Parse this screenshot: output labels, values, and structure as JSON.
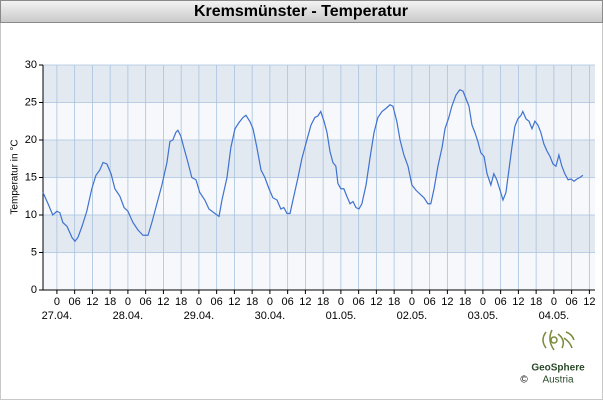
{
  "chart_data": {
    "type": "line",
    "title": "Kremsmünster - Temperatur",
    "y_label": "Temperatur in °C",
    "x": [
      -4.7,
      -3.0,
      -1.4,
      0,
      1.0,
      2.0,
      3.4,
      5.1,
      6.1,
      7.1,
      8.5,
      10.1,
      11.8,
      13.2,
      14.5,
      15.6,
      16.9,
      18.3,
      19.6,
      21.3,
      22.7,
      24.0,
      25.7,
      27.4,
      29.1,
      30.8,
      32.1,
      33.8,
      35.5,
      37.2,
      38.2,
      39.2,
      40.2,
      40.9,
      41.9,
      42.9,
      44.3,
      45.6,
      47.0,
      48.3,
      50.0,
      51.4,
      53.1,
      54.8,
      55.8,
      57.5,
      58.8,
      60.2,
      61.5,
      62.9,
      63.9,
      65.2,
      66.3,
      67.6,
      69.0,
      70.3,
      71.7,
      73.0,
      74.4,
      75.7,
      76.7,
      77.8,
      78.8,
      79.8,
      81.5,
      82.8,
      84.5,
      85.9,
      87.2,
      88.2,
      89.2,
      90.3,
      91.3,
      92.3,
      93.3,
      94.3,
      95.0,
      96.0,
      97.0,
      98.0,
      99.1,
      100.1,
      101.1,
      102.1,
      103.1,
      104.5,
      105.8,
      107.2,
      108.5,
      109.9,
      111.2,
      112.6,
      113.6,
      114.9,
      116.0,
      117.3,
      118.7,
      120.0,
      121.4,
      122.7,
      124.1,
      125.4,
      126.4,
      127.5,
      128.8,
      130.2,
      131.2,
      132.5,
      133.5,
      134.9,
      136.2,
      137.3,
      138.3,
      139.3,
      140.3,
      141.3,
      142.3,
      143.3,
      144.4,
      145.4,
      146.7,
      147.7,
      148.7,
      149.8,
      150.8,
      151.8,
      152.8,
      153.8,
      154.8,
      155.8,
      156.9,
      157.5,
      158.6,
      159.6,
      160.6,
      161.6,
      162.6,
      163.6,
      164.6,
      165.7,
      166.7,
      167.7,
      168.7,
      169.7,
      170.7,
      171.7,
      172.8,
      173.8,
      174.8,
      175.8,
      176.8,
      177.8
    ],
    "values": [
      13,
      11.5,
      10,
      10.5,
      10.3,
      9,
      8.5,
      7,
      6.5,
      7,
      8.5,
      10.5,
      13.5,
      15.3,
      16,
      17,
      16.8,
      15.5,
      13.5,
      12.5,
      11,
      10.5,
      9,
      8,
      7.3,
      7.3,
      9,
      11.5,
      14,
      17,
      19.8,
      20,
      21,
      21.3,
      20.5,
      19,
      17,
      15,
      14.7,
      13,
      12,
      10.8,
      10.3,
      9.8,
      12,
      15,
      19,
      21.5,
      22.3,
      23,
      23.3,
      22.5,
      21.5,
      19,
      16,
      15,
      13.5,
      12.3,
      12,
      10.8,
      11,
      10.2,
      10.2,
      12,
      15,
      17.5,
      20,
      22,
      23,
      23.2,
      23.8,
      22.5,
      21,
      18.5,
      17,
      16.5,
      14.2,
      13.5,
      13.5,
      12.5,
      11.5,
      11.8,
      11,
      10.8,
      11.5,
      14,
      17.5,
      21,
      23,
      23.8,
      24.2,
      24.7,
      24.5,
      22.5,
      20,
      18,
      16.5,
      14,
      13.3,
      12.8,
      12.3,
      11.5,
      11.5,
      13.5,
      16.5,
      19,
      21.5,
      23,
      24.5,
      26,
      26.7,
      26.5,
      25.5,
      24.5,
      22,
      21,
      19.8,
      18.3,
      17.8,
      15.5,
      14,
      15.5,
      14.7,
      13.3,
      12,
      13,
      16,
      19,
      21.8,
      22.8,
      23.3,
      23.8,
      22.8,
      22.5,
      21.5,
      22.5,
      22,
      21,
      19.5,
      18.5,
      17.8,
      16.8,
      16.5,
      18,
      16.5,
      15.5,
      14.7,
      14.8,
      14.5,
      14.8,
      15,
      15.3
    ],
    "color": "#3f72d0",
    "xlim": [
      -4.7,
      181.9
    ],
    "xticks": [
      {
        "value": 0,
        "label": "0"
      },
      {
        "value": 6,
        "label": "06"
      },
      {
        "value": 12,
        "label": "12"
      },
      {
        "value": 18,
        "label": "18"
      },
      {
        "value": 24,
        "label": "0"
      },
      {
        "value": 30,
        "label": "06"
      },
      {
        "value": 36,
        "label": "12"
      },
      {
        "value": 42,
        "label": "18"
      },
      {
        "value": 48,
        "label": "0"
      },
      {
        "value": 54,
        "label": "06"
      },
      {
        "value": 60,
        "label": "12"
      },
      {
        "value": 66,
        "label": "18"
      },
      {
        "value": 72,
        "label": "0"
      },
      {
        "value": 78,
        "label": "06"
      },
      {
        "value": 84,
        "label": "12"
      },
      {
        "value": 90,
        "label": "18"
      },
      {
        "value": 96,
        "label": "0"
      },
      {
        "value": 102,
        "label": "06"
      },
      {
        "value": 108,
        "label": "12"
      },
      {
        "value": 114,
        "label": "18"
      },
      {
        "value": 120,
        "label": "0"
      },
      {
        "value": 126,
        "label": "06"
      },
      {
        "value": 132,
        "label": "12"
      },
      {
        "value": 138,
        "label": "18"
      },
      {
        "value": 144,
        "label": "0"
      },
      {
        "value": 150,
        "label": "06"
      },
      {
        "value": 156,
        "label": "12"
      },
      {
        "value": 162,
        "label": "18"
      },
      {
        "value": 168,
        "label": "0"
      },
      {
        "value": 174,
        "label": "06"
      },
      {
        "value": 180,
        "label": "12"
      }
    ],
    "date_labels": [
      {
        "value": 0,
        "label": "27.04."
      },
      {
        "value": 24,
        "label": "28.04."
      },
      {
        "value": 48,
        "label": "29.04."
      },
      {
        "value": 72,
        "label": "30.04."
      },
      {
        "value": 96,
        "label": "01.05."
      },
      {
        "value": 120,
        "label": "02.05."
      },
      {
        "value": 144,
        "label": "03.05."
      },
      {
        "value": 168,
        "label": "04.05."
      }
    ],
    "ylim": [
      0,
      30
    ],
    "yticks": [
      0,
      5,
      10,
      15,
      20,
      25,
      30
    ],
    "grid": true,
    "logo": {
      "name": "GeoSphere",
      "sub": "Austria",
      "copyright": "©"
    }
  }
}
